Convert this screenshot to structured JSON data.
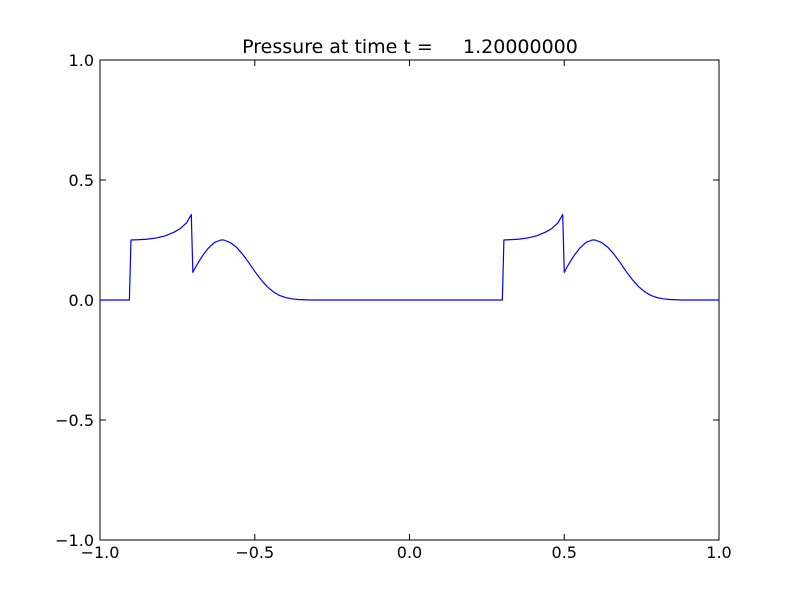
{
  "chart_data": {
    "type": "line",
    "title": "Pressure at time t =     1.20000000",
    "xlabel": "",
    "ylabel": "",
    "xlim": [
      -1.0,
      1.0
    ],
    "ylim": [
      -1.0,
      1.0
    ],
    "x_ticks": [
      -1.0,
      -0.5,
      0.0,
      0.5,
      1.0
    ],
    "x_tick_labels": [
      "−1.0",
      "−0.5",
      "0.0",
      "0.5",
      "1.0"
    ],
    "y_ticks": [
      -1.0,
      -0.5,
      0.0,
      0.5,
      1.0
    ],
    "y_tick_labels": [
      "−1.0",
      "−0.5",
      "0.0",
      "0.5",
      "1.0"
    ],
    "grid": false,
    "legend": "none",
    "line_color": "#0000ff",
    "series": [
      {
        "x": [
          -1.0,
          -0.905,
          -0.9,
          -0.88,
          -0.85,
          -0.82,
          -0.79,
          -0.76,
          -0.74,
          -0.72,
          -0.705,
          -0.7,
          -0.69,
          -0.67,
          -0.65,
          -0.63,
          -0.61,
          -0.6,
          -0.58,
          -0.56,
          -0.54,
          -0.52,
          -0.5,
          -0.48,
          -0.46,
          -0.44,
          -0.42,
          -0.4,
          -0.38,
          -0.36,
          -0.34,
          -0.32,
          -0.3,
          -0.27,
          -0.2,
          0.0,
          0.2,
          0.3,
          0.305,
          0.32,
          0.35,
          0.38,
          0.41,
          0.44,
          0.46,
          0.48,
          0.495,
          0.5,
          0.51,
          0.53,
          0.55,
          0.57,
          0.59,
          0.6,
          0.62,
          0.64,
          0.66,
          0.68,
          0.7,
          0.72,
          0.74,
          0.76,
          0.78,
          0.8,
          0.82,
          0.84,
          0.86,
          0.88,
          0.9,
          0.95,
          1.0
        ],
        "y": [
          0.0,
          0.0,
          0.25,
          0.251,
          0.253,
          0.258,
          0.267,
          0.283,
          0.298,
          0.322,
          0.356,
          0.115,
          0.14,
          0.182,
          0.216,
          0.24,
          0.25,
          0.25,
          0.24,
          0.221,
          0.192,
          0.157,
          0.119,
          0.085,
          0.056,
          0.034,
          0.019,
          0.01,
          0.005,
          0.002,
          0.001,
          0.0,
          0.0,
          0.0,
          0.0,
          0.0,
          0.0,
          0.0,
          0.25,
          0.251,
          0.253,
          0.258,
          0.267,
          0.283,
          0.298,
          0.322,
          0.356,
          0.115,
          0.14,
          0.182,
          0.216,
          0.24,
          0.25,
          0.25,
          0.24,
          0.221,
          0.192,
          0.157,
          0.119,
          0.085,
          0.056,
          0.034,
          0.019,
          0.01,
          0.005,
          0.002,
          0.001,
          0.0,
          0.0,
          0.0,
          0.0
        ]
      }
    ]
  }
}
